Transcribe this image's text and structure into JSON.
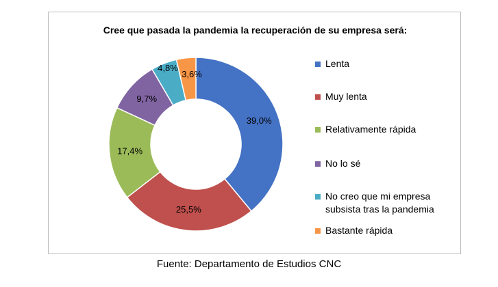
{
  "source": "Fuente: Departamento de Estudios CNC",
  "chart_data": {
    "type": "pie",
    "variant": "donut",
    "title": "Cree que pasada la pandemia la recuperación de su empresa será:",
    "legend_position": "right",
    "start_angle_deg": 0,
    "direction": "clockwise",
    "slices": [
      {
        "label": "Lenta",
        "value": 39.0,
        "value_label": "39,0%",
        "color": "#4472C4"
      },
      {
        "label": "Muy lenta",
        "value": 25.5,
        "value_label": "25,5%",
        "color": "#C0504D"
      },
      {
        "label": "Relativamente rápida",
        "value": 17.4,
        "value_label": "17,4%",
        "color": "#9BBB59"
      },
      {
        "label": "No lo sé",
        "value": 9.7,
        "value_label": "9,7%",
        "color": "#8064A2"
      },
      {
        "label": "No creo que mi empresa subsista tras la pandemia",
        "value": 4.8,
        "value_label": "4,8%",
        "color": "#4BACC6"
      },
      {
        "label": "Bastante rápida",
        "value": 3.6,
        "value_label": "3,6%",
        "color": "#F79646"
      }
    ]
  }
}
